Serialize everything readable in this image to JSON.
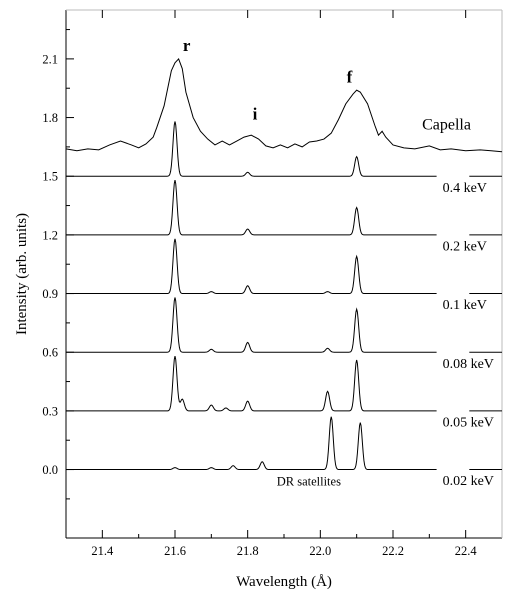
{
  "chart_data": {
    "type": "line",
    "title": "",
    "xlabel": "Wavelength (Å)",
    "ylabel": "Intensity (arb. units)",
    "xlim": [
      21.3,
      22.5
    ],
    "ylim": [
      -0.35,
      2.35
    ],
    "x_ticks": [
      21.4,
      21.6,
      21.8,
      22.0,
      22.2,
      22.4
    ],
    "x_tick_labels": [
      "21.4",
      "21.6",
      "21.8",
      "22.0",
      "22.2",
      "22.4"
    ],
    "y_ticks": [
      0.0,
      0.3,
      0.6,
      0.9,
      1.2,
      1.5,
      1.8,
      2.1
    ],
    "y_tick_labels": [
      "0.0",
      "0.3",
      "0.6",
      "0.9",
      "1.2",
      "1.5",
      "1.8",
      "2.1"
    ],
    "grid": false,
    "line_labels": [
      {
        "text": "r",
        "x": 21.61,
        "y": 2.14
      },
      {
        "text": "i",
        "x": 21.82,
        "y": 1.79
      },
      {
        "text": "f",
        "x": 22.08,
        "y": 1.98
      }
    ],
    "annotations": [
      {
        "text": "DR satellites",
        "x": 21.88,
        "y": -0.06
      }
    ],
    "series": [
      {
        "name": "Capella",
        "baseline": 1.64,
        "label_x": 22.28,
        "label_y": 1.74,
        "style": "solid",
        "points": [
          [
            21.3,
            1.64
          ],
          [
            21.33,
            1.63
          ],
          [
            21.36,
            1.64
          ],
          [
            21.39,
            1.635
          ],
          [
            21.42,
            1.66
          ],
          [
            21.45,
            1.68
          ],
          [
            21.48,
            1.66
          ],
          [
            21.5,
            1.645
          ],
          [
            21.52,
            1.665
          ],
          [
            21.54,
            1.7
          ],
          [
            21.55,
            1.75
          ],
          [
            21.57,
            1.86
          ],
          [
            21.58,
            1.95
          ],
          [
            21.59,
            2.04
          ],
          [
            21.6,
            2.08
          ],
          [
            21.61,
            2.1
          ],
          [
            21.62,
            2.05
          ],
          [
            21.63,
            1.93
          ],
          [
            21.65,
            1.8
          ],
          [
            21.67,
            1.73
          ],
          [
            21.69,
            1.69
          ],
          [
            21.71,
            1.66
          ],
          [
            21.73,
            1.68
          ],
          [
            21.75,
            1.66
          ],
          [
            21.77,
            1.68
          ],
          [
            21.79,
            1.7
          ],
          [
            21.81,
            1.71
          ],
          [
            21.83,
            1.69
          ],
          [
            21.85,
            1.655
          ],
          [
            21.87,
            1.645
          ],
          [
            21.89,
            1.66
          ],
          [
            21.91,
            1.645
          ],
          [
            21.93,
            1.665
          ],
          [
            21.95,
            1.65
          ],
          [
            21.97,
            1.675
          ],
          [
            21.99,
            1.68
          ],
          [
            22.01,
            1.69
          ],
          [
            22.03,
            1.72
          ],
          [
            22.05,
            1.79
          ],
          [
            22.07,
            1.87
          ],
          [
            22.09,
            1.92
          ],
          [
            22.1,
            1.94
          ],
          [
            22.11,
            1.93
          ],
          [
            22.13,
            1.87
          ],
          [
            22.15,
            1.76
          ],
          [
            22.16,
            1.71
          ],
          [
            22.17,
            1.73
          ],
          [
            22.18,
            1.7
          ],
          [
            22.2,
            1.66
          ],
          [
            22.23,
            1.645
          ],
          [
            22.26,
            1.64
          ],
          [
            22.3,
            1.655
          ],
          [
            22.33,
            1.635
          ],
          [
            22.36,
            1.64
          ],
          [
            22.4,
            1.63
          ],
          [
            22.44,
            1.635
          ],
          [
            22.47,
            1.63
          ],
          [
            22.5,
            1.625
          ]
        ]
      },
      {
        "name": "0.4 keV",
        "baseline": 1.5,
        "x_end": 22.32,
        "label_x": 22.32,
        "label_y": 1.42,
        "style": "dashed",
        "peaks": [
          {
            "x": 21.6,
            "height": 0.28
          },
          {
            "x": 21.8,
            "height": 0.02
          },
          {
            "x": 22.1,
            "height": 0.1
          }
        ]
      },
      {
        "name": "0.2 keV",
        "baseline": 1.2,
        "x_end": 22.32,
        "label_x": 22.32,
        "label_y": 1.12,
        "style": "dashed",
        "peaks": [
          {
            "x": 21.6,
            "height": 0.28
          },
          {
            "x": 21.8,
            "height": 0.03
          },
          {
            "x": 22.1,
            "height": 0.14
          }
        ]
      },
      {
        "name": "0.1 keV",
        "baseline": 0.9,
        "x_end": 22.32,
        "label_x": 22.32,
        "label_y": 0.82,
        "style": "dashed",
        "peaks": [
          {
            "x": 21.6,
            "height": 0.28
          },
          {
            "x": 21.7,
            "height": 0.01
          },
          {
            "x": 21.8,
            "height": 0.04
          },
          {
            "x": 22.02,
            "height": 0.01
          },
          {
            "x": 22.1,
            "height": 0.19
          }
        ]
      },
      {
        "name": "0.08 keV",
        "baseline": 0.6,
        "x_end": 22.32,
        "label_x": 22.32,
        "label_y": 0.52,
        "style": "dashed",
        "peaks": [
          {
            "x": 21.6,
            "height": 0.28
          },
          {
            "x": 21.7,
            "height": 0.015
          },
          {
            "x": 21.8,
            "height": 0.05
          },
          {
            "x": 22.02,
            "height": 0.02
          },
          {
            "x": 22.1,
            "height": 0.22
          }
        ]
      },
      {
        "name": "0.05 keV",
        "baseline": 0.3,
        "x_end": 22.32,
        "label_x": 22.32,
        "label_y": 0.22,
        "style": "dashed",
        "peaks": [
          {
            "x": 21.6,
            "height": 0.28
          },
          {
            "x": 21.62,
            "height": 0.06
          },
          {
            "x": 21.7,
            "height": 0.03
          },
          {
            "x": 21.74,
            "height": 0.015
          },
          {
            "x": 21.8,
            "height": 0.05
          },
          {
            "x": 22.02,
            "height": 0.1
          },
          {
            "x": 22.1,
            "height": 0.26
          }
        ]
      },
      {
        "name": "0.02 keV",
        "baseline": 0.0,
        "x_end": 22.32,
        "label_x": 22.32,
        "label_y": -0.08,
        "style": "dashed",
        "peaks": [
          {
            "x": 21.6,
            "height": 0.01
          },
          {
            "x": 21.7,
            "height": 0.01
          },
          {
            "x": 21.76,
            "height": 0.02
          },
          {
            "x": 21.84,
            "height": 0.04
          },
          {
            "x": 22.03,
            "height": 0.27
          },
          {
            "x": 22.11,
            "height": 0.24
          }
        ]
      }
    ]
  }
}
